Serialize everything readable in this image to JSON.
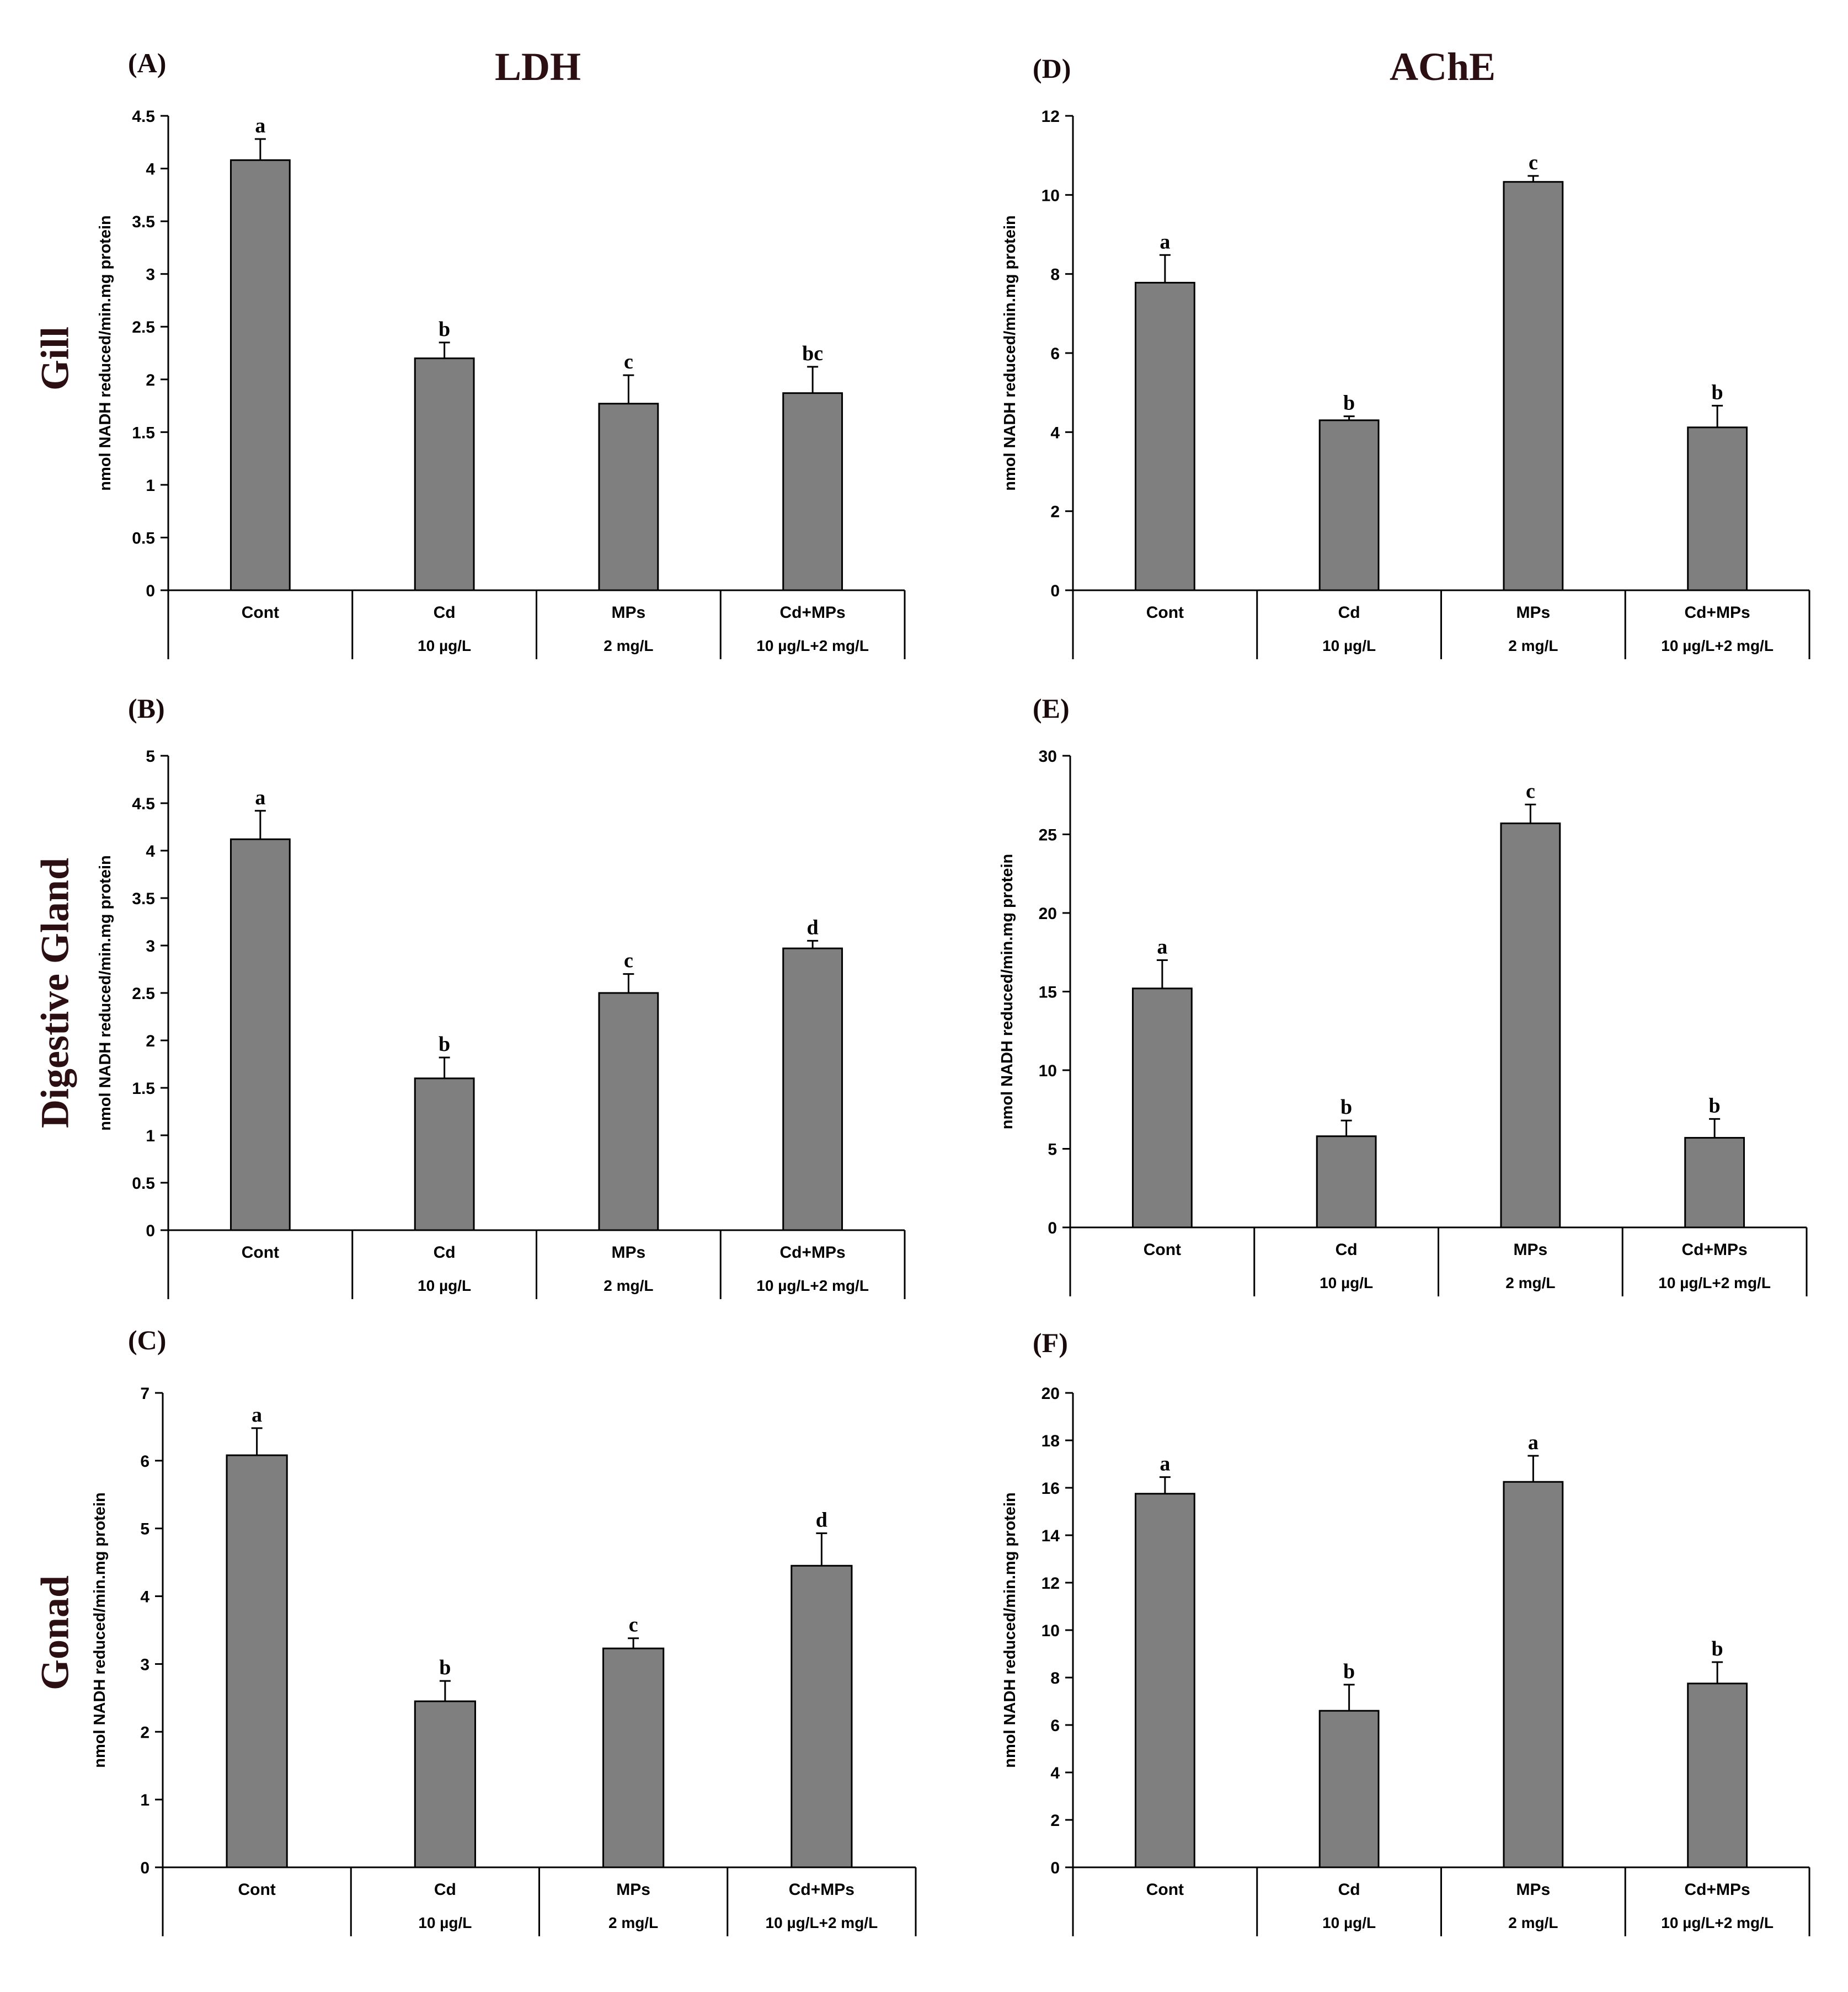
{
  "column_titles": [
    "LDH",
    "AChE"
  ],
  "row_titles": [
    "Gill",
    "Digestive Gland",
    "Gonad"
  ],
  "colors": {
    "bar_fill": "#7f7f7f",
    "bar_stroke": "#000000",
    "title_color": "#2b0f12"
  },
  "chart_data": [
    {
      "panel": "(A)",
      "type": "bar",
      "title": "LDH",
      "row": "Gill",
      "categories": [
        "Cont",
        "Cd",
        "MPs",
        "Cd+MPs"
      ],
      "category_sublabels": [
        "",
        "10 µg/L",
        "2 mg/L",
        "10 µg/L+2 mg/L"
      ],
      "values": [
        4.08,
        2.2,
        1.77,
        1.87
      ],
      "errors": [
        0.2,
        0.15,
        0.27,
        0.25
      ],
      "letters": [
        "a",
        "b",
        "c",
        "bc"
      ],
      "ylabel": "nmol NADH reduced/min.mg protein",
      "ylim": [
        0,
        4.5
      ],
      "yticks": [
        "0",
        "0.5",
        "1",
        "1.5",
        "2",
        "2.5",
        "3",
        "3.5",
        "4",
        "4.5"
      ]
    },
    {
      "panel": "(B)",
      "type": "bar",
      "title": "",
      "row": "Digestive Gland",
      "categories": [
        "Cont",
        "Cd",
        "MPs",
        "Cd+MPs"
      ],
      "category_sublabels": [
        "",
        "10 µg/L",
        "2 mg/L",
        "10 µg/L+2 mg/L"
      ],
      "values": [
        4.12,
        1.6,
        2.5,
        2.97
      ],
      "errors": [
        0.3,
        0.22,
        0.2,
        0.08
      ],
      "letters": [
        "a",
        "b",
        "c",
        "d"
      ],
      "ylabel": "nmol NADH reduced/min.mg protein",
      "ylim": [
        0,
        5
      ],
      "yticks": [
        "0",
        "0.5",
        "1",
        "1.5",
        "2",
        "2.5",
        "3",
        "3.5",
        "4",
        "4.5",
        "5"
      ]
    },
    {
      "panel": "(C)",
      "type": "bar",
      "title": "",
      "row": "Gonad",
      "categories": [
        "Cont",
        "Cd",
        "MPs",
        "Cd+MPs"
      ],
      "category_sublabels": [
        "",
        "10 µg/L",
        "2 mg/L",
        "10 µg/L+2 mg/L"
      ],
      "values": [
        6.08,
        2.45,
        3.23,
        4.45
      ],
      "errors": [
        0.4,
        0.3,
        0.15,
        0.48
      ],
      "letters": [
        "a",
        "b",
        "c",
        "d"
      ],
      "ylabel": "nmol NADH reduced/min.mg protein",
      "ylim": [
        0,
        7
      ],
      "yticks": [
        "0",
        "1",
        "2",
        "3",
        "4",
        "5",
        "6",
        "7"
      ]
    },
    {
      "panel": "(D)",
      "type": "bar",
      "title": "AChE",
      "row": "Gill",
      "categories": [
        "Cont",
        "Cd",
        "MPs",
        "Cd+MPs"
      ],
      "category_sublabels": [
        "",
        "10 µg/L",
        "2 mg/L",
        "10 µg/L+2 mg/L"
      ],
      "values": [
        7.78,
        4.3,
        10.33,
        4.12
      ],
      "errors": [
        0.7,
        0.1,
        0.15,
        0.55
      ],
      "letters": [
        "a",
        "b",
        "c",
        "b"
      ],
      "ylabel": "nmol NADH reduced/min.mg protein",
      "ylim": [
        0,
        12
      ],
      "yticks": [
        "0",
        "2",
        "4",
        "6",
        "8",
        "10",
        "12"
      ]
    },
    {
      "panel": "(E)",
      "type": "bar",
      "title": "",
      "row": "Digestive Gland",
      "categories": [
        "Cont",
        "Cd",
        "MPs",
        "Cd+MPs"
      ],
      "category_sublabels": [
        "",
        "10 µg/L",
        "2 mg/L",
        "10 µg/L+2 mg/L"
      ],
      "values": [
        15.2,
        5.8,
        25.7,
        5.7
      ],
      "errors": [
        1.8,
        1.0,
        1.2,
        1.2
      ],
      "letters": [
        "a",
        "b",
        "c",
        "b"
      ],
      "ylabel": "nmol NADH reduced/min.mg protein",
      "ylim": [
        0,
        30
      ],
      "yticks": [
        "0",
        "5",
        "10",
        "15",
        "20",
        "25",
        "30"
      ]
    },
    {
      "panel": "(F)",
      "type": "bar",
      "title": "",
      "row": "Gonad",
      "categories": [
        "Cont",
        "Cd",
        "MPs",
        "Cd+MPs"
      ],
      "category_sublabels": [
        "",
        "10 µg/L",
        "2 mg/L",
        "10 µg/L+2 mg/L"
      ],
      "values": [
        15.75,
        6.6,
        16.25,
        7.75
      ],
      "errors": [
        0.7,
        1.1,
        1.1,
        0.9
      ],
      "letters": [
        "a",
        "b",
        "a",
        "b"
      ],
      "ylabel": "nmol NADH reduced/min.mg protein",
      "ylim": [
        0,
        20
      ],
      "yticks": [
        "0",
        "2",
        "4",
        "6",
        "8",
        "10",
        "12",
        "14",
        "16",
        "18",
        "20"
      ]
    }
  ]
}
